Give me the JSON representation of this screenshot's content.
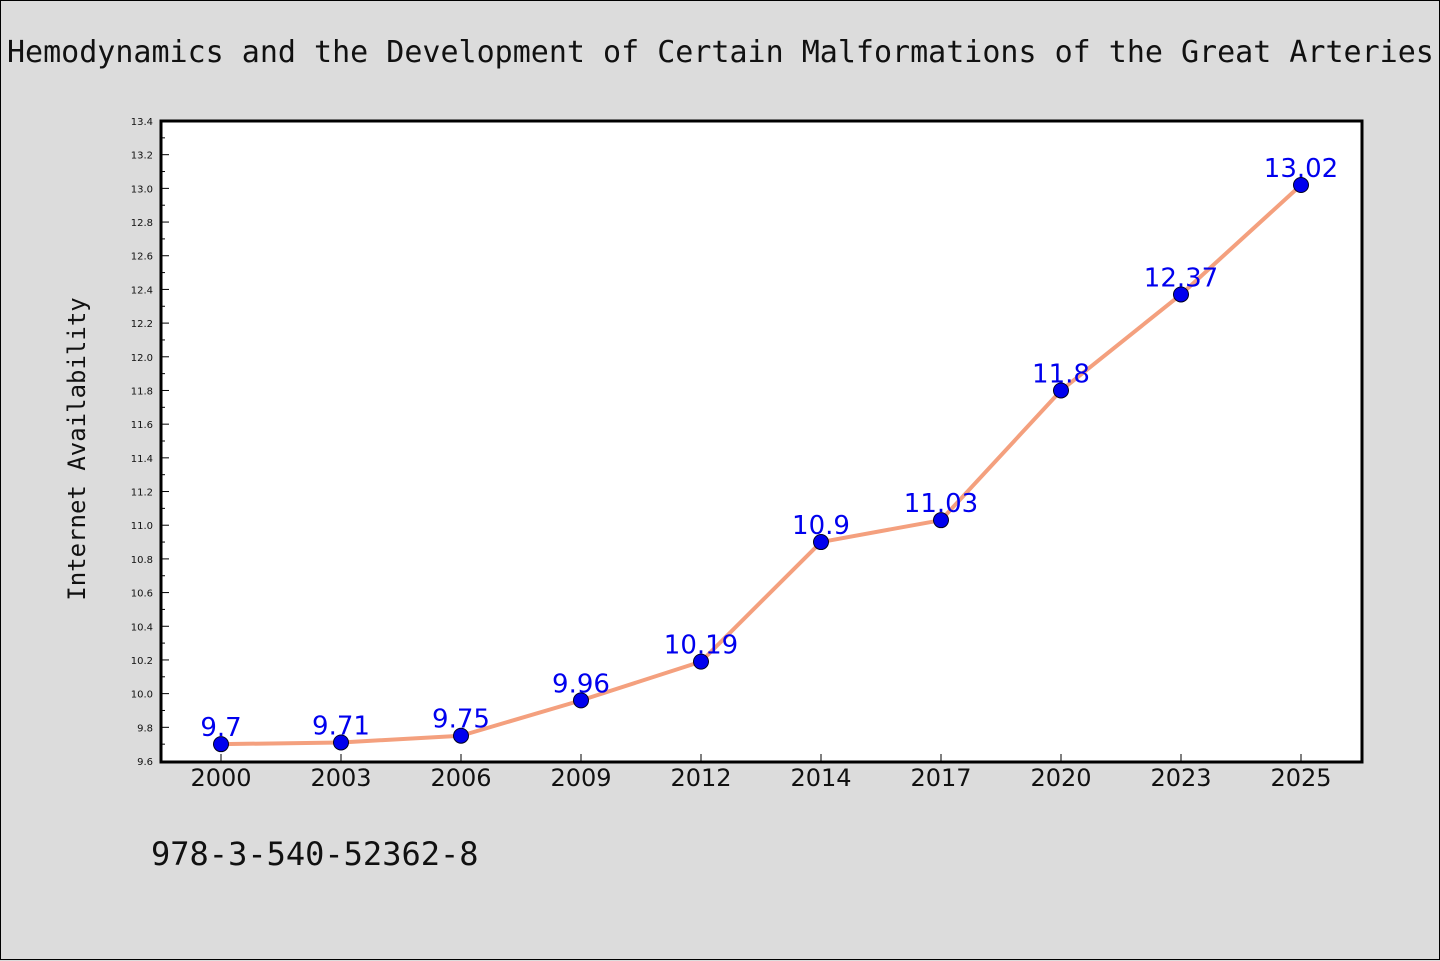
{
  "page": {
    "title": "Hemodynamics and the Development of Certain Malformations of the Great Arteries.",
    "footer_text": "978-3-540-52362-8"
  },
  "colors": {
    "background": "#dcdcdc",
    "plot_background": "#ffffff",
    "line": "#f4a07e",
    "marker": "#0000ee",
    "data_label": "#0000ee"
  },
  "chart_data": {
    "type": "line",
    "title": "Hemodynamics and the Development of Certain Malformations of the Great Arteries.",
    "xlabel": "",
    "ylabel": "Internet Availability",
    "categories": [
      "2000",
      "2003",
      "2006",
      "2009",
      "2012",
      "2014",
      "2017",
      "2020",
      "2023",
      "2025"
    ],
    "series": [
      {
        "values": [
          9.7,
          9.71,
          9.75,
          9.96,
          10.19,
          10.9,
          11.03,
          11.8,
          12.37,
          13.02
        ]
      }
    ],
    "data_labels": [
      "9.7",
      "9.71",
      "9.75",
      "9.96",
      "10.19",
      "10.9",
      "11.03",
      "11.8",
      "12.37",
      "13.02"
    ],
    "ylim": [
      9.6,
      13.4
    ],
    "y_ticks": [
      "9.6",
      "9.8",
      "10.0",
      "10.2",
      "10.4",
      "10.6",
      "10.8",
      "11.0",
      "11.2",
      "11.4",
      "11.6",
      "11.8",
      "12.0",
      "12.2",
      "12.4",
      "12.6",
      "12.8",
      "13.0",
      "13.2",
      "13.4"
    ],
    "grid": false,
    "legend": "none",
    "markers": true
  }
}
